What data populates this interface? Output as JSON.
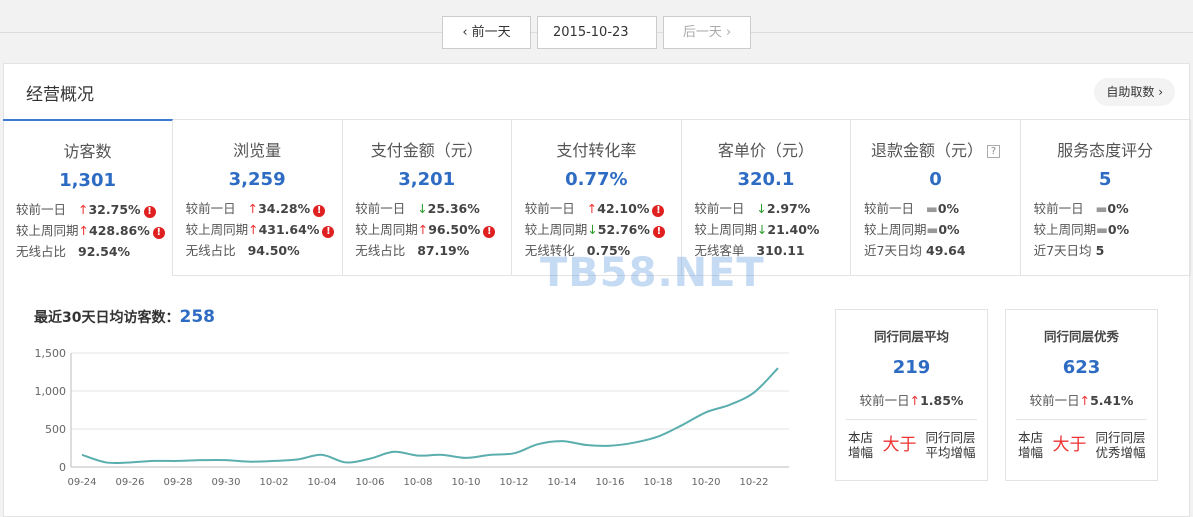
{
  "nav": {
    "prev": "前一天",
    "date": "2015-10-23",
    "next": "后一天"
  },
  "panel": {
    "title": "经营概况",
    "action": "自助取数"
  },
  "metrics": [
    {
      "title": "访客数",
      "value": "1,301",
      "rows": [
        {
          "label": "较前一日",
          "trend": "up",
          "value": "32.75%",
          "alert": true
        },
        {
          "label": "较上周同期",
          "trend": "up",
          "value": "428.86%",
          "alert": true
        },
        {
          "label": "无线占比",
          "value": "92.54%"
        }
      ]
    },
    {
      "title": "浏览量",
      "value": "3,259",
      "rows": [
        {
          "label": "较前一日",
          "trend": "up",
          "value": "34.28%",
          "alert": true
        },
        {
          "label": "较上周同期",
          "trend": "up",
          "value": "431.64%",
          "alert": true
        },
        {
          "label": "无线占比",
          "value": "94.50%"
        }
      ]
    },
    {
      "title": "支付金额（元）",
      "value": "3,201",
      "rows": [
        {
          "label": "较前一日",
          "trend": "down",
          "value": "25.36%"
        },
        {
          "label": "较上周同期",
          "trend": "up",
          "value": "96.50%",
          "alert": true
        },
        {
          "label": "无线占比",
          "value": "87.19%"
        }
      ]
    },
    {
      "title": "支付转化率",
      "value": "0.77%",
      "rows": [
        {
          "label": "较前一日",
          "trend": "up",
          "value": "42.10%",
          "alert": true
        },
        {
          "label": "较上周同期",
          "trend": "down",
          "value": "52.76%",
          "alert": true
        },
        {
          "label": "无线转化",
          "value": "0.75%"
        }
      ]
    },
    {
      "title": "客单价（元）",
      "value": "320.1",
      "rows": [
        {
          "label": "较前一日",
          "trend": "down",
          "value": "2.97%"
        },
        {
          "label": "较上周同期",
          "trend": "down",
          "value": "21.40%"
        },
        {
          "label": "无线客单",
          "value": "310.11"
        }
      ]
    },
    {
      "title": "退款金额（元）",
      "help": "?",
      "value": "0",
      "rows": [
        {
          "label": "较前一日",
          "trend": "flat",
          "value": "0%"
        },
        {
          "label": "较上周同期",
          "trend": "flat",
          "value": "0%"
        },
        {
          "label": "近7天日均",
          "value": "49.64"
        }
      ]
    },
    {
      "title": "服务态度评分",
      "value": "5",
      "rows": [
        {
          "label": "较前一日",
          "trend": "flat",
          "value": "0%"
        },
        {
          "label": "较上周同期",
          "trend": "flat",
          "value": "0%"
        },
        {
          "label": "近7天日均",
          "value": "5"
        }
      ]
    }
  ],
  "watermark": "TB58.NET",
  "chart_data": {
    "type": "line",
    "title": "最近30天日均访客数：",
    "average": 258,
    "categories": [
      "09-24",
      null,
      "09-26",
      null,
      "09-28",
      null,
      "09-30",
      null,
      "10-02",
      null,
      "10-04",
      null,
      "10-06",
      null,
      "10-08",
      null,
      "10-10",
      null,
      "10-12",
      null,
      "10-14",
      null,
      "10-16",
      null,
      "10-18",
      null,
      "10-20",
      null,
      "10-22",
      null
    ],
    "series": [
      {
        "name": "访客数",
        "color": "#5aaead",
        "values": [
          160,
          60,
          60,
          80,
          80,
          90,
          90,
          70,
          80,
          100,
          160,
          60,
          110,
          200,
          150,
          160,
          120,
          160,
          180,
          300,
          340,
          290,
          280,
          320,
          400,
          550,
          720,
          820,
          980,
          1301
        ]
      }
    ],
    "ylim": [
      0,
      1500
    ],
    "yticks": [
      0,
      500,
      {
        "value": 1000,
        "label": "1,000"
      },
      {
        "value": 1500,
        "label": "1,500"
      }
    ],
    "grid": true
  },
  "peers": [
    {
      "title": "同行同层平均",
      "value": "219",
      "row": {
        "label": "较前一日",
        "trend": "up",
        "value": "1.85%"
      },
      "compare": {
        "left": "本店增幅",
        "verdict": "大于",
        "right": "同行同层平均增幅"
      }
    },
    {
      "title": "同行同层优秀",
      "value": "623",
      "row": {
        "label": "较前一日",
        "trend": "up",
        "value": "5.41%"
      },
      "compare": {
        "left": "本店增幅",
        "verdict": "大于",
        "right": "同行同层优秀增幅"
      }
    }
  ]
}
